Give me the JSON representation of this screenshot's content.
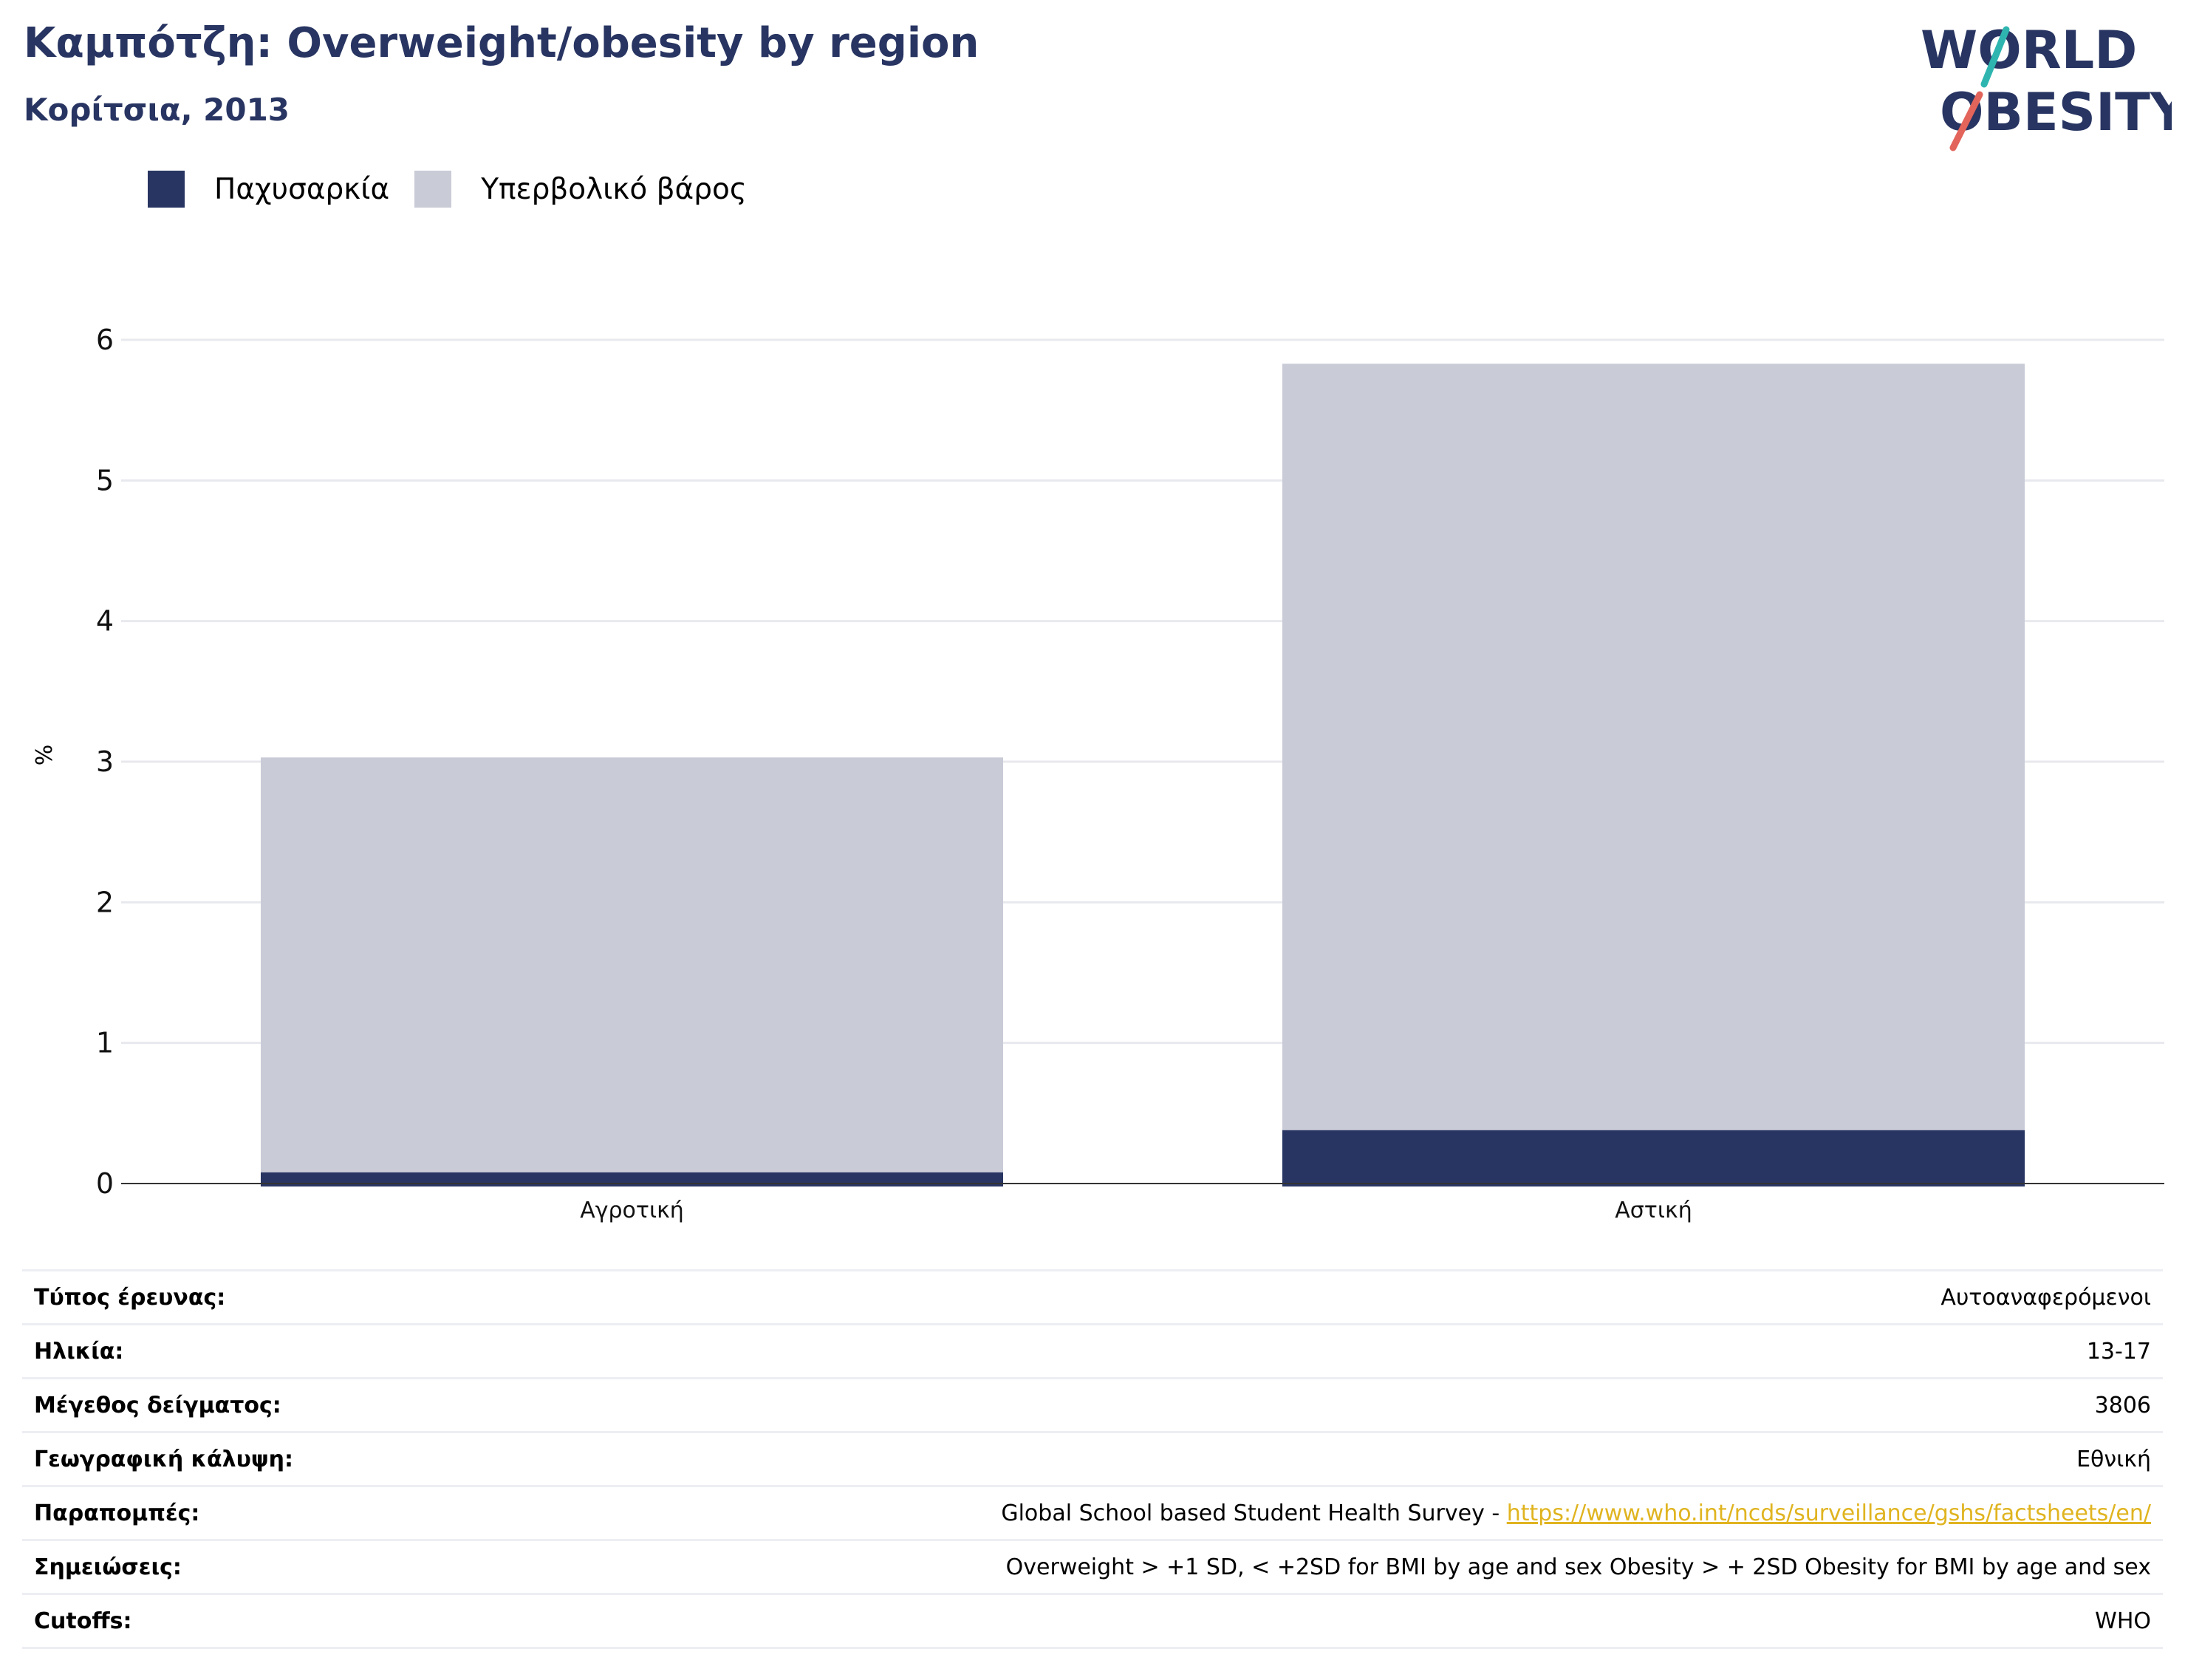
{
  "header": {
    "title": "Καμπότζη: Overweight/obesity by region",
    "subtitle": "Κορίτσια, 2013"
  },
  "logo": {
    "line1": "WORLD",
    "line2": "OBESITY"
  },
  "colors": {
    "obesity": "#283562",
    "overweight": "#c9cbd7",
    "title": "#283562",
    "link": "#e0b420",
    "logo_teal": "#2fb5b0",
    "logo_red": "#e2645a"
  },
  "chart_data": {
    "type": "bar",
    "stacked": true,
    "categories": [
      "Αγροτική",
      "Αστική"
    ],
    "series": [
      {
        "name": "Παχυσαρκία",
        "values": [
          0.08,
          0.38
        ],
        "color": "#283562"
      },
      {
        "name": "Υπερβολικό βάρος",
        "values": [
          2.95,
          5.45
        ],
        "color": "#c9cbd7"
      }
    ],
    "ylabel": "%",
    "ylim": [
      0,
      6
    ],
    "yticks": [
      0,
      1,
      2,
      3,
      4,
      5,
      6
    ],
    "grid": true,
    "legend_position": "top-left"
  },
  "info": {
    "rows": [
      {
        "label": "Τύπος έρευνας:",
        "value": "Αυτοαναφερόμενοι"
      },
      {
        "label": "Ηλικία:",
        "value": "13-17"
      },
      {
        "label": "Μέγεθος δείγματος:",
        "value": "3806"
      },
      {
        "label": "Γεωγραφική κάλυψη:",
        "value": "Εθνική"
      },
      {
        "label": "Παραπομπές:",
        "value": "Global School based Student Health Survey - ",
        "link": "https://www.who.int/ncds/surveillance/gshs/factsheets/en/"
      },
      {
        "label": "Σημειώσεις:",
        "value": "Overweight > +1 SD, < +2SD for BMI by age and sex Obesity > + 2SD Obesity for BMI by age and sex"
      },
      {
        "label": "Cutoffs:",
        "value": "WHO"
      }
    ]
  }
}
